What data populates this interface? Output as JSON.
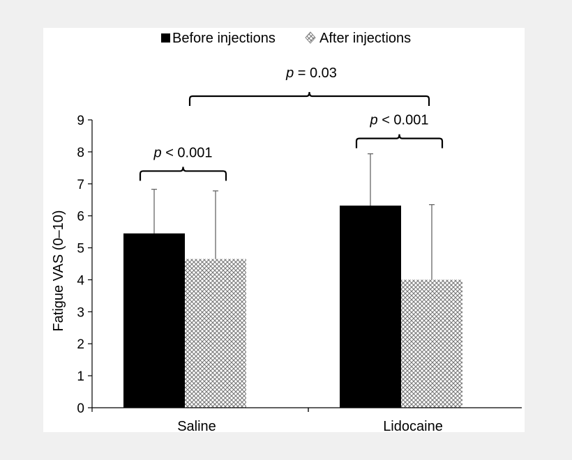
{
  "chart_data": {
    "type": "bar",
    "categories": [
      "Saline",
      "Lidocaine"
    ],
    "series": [
      {
        "name": "Before injections",
        "values": [
          5.45,
          6.32
        ],
        "errors": [
          1.38,
          1.62
        ],
        "fill": "solid",
        "color": "#000000"
      },
      {
        "name": "After injections",
        "values": [
          4.65,
          4.0
        ],
        "errors": [
          2.13,
          2.35
        ],
        "fill": "crosshatch",
        "color": "#888888"
      }
    ],
    "ylabel": "Fatigue VAS (0–10)",
    "xlabel": "",
    "ylim": [
      0,
      9
    ],
    "yticks": [
      0,
      1,
      2,
      3,
      4,
      5,
      6,
      7,
      8,
      9
    ],
    "legend_position": "top-center",
    "grid": false,
    "annotations": [
      {
        "id": "saline",
        "label": "p",
        "relation": "< 0.001",
        "spans": [
          "Saline: Before injections",
          "Saline: After injections"
        ]
      },
      {
        "id": "lidocaine",
        "label": "p",
        "relation": "< 0.001",
        "spans": [
          "Lidocaine: Before injections",
          "Lidocaine: After injections"
        ]
      },
      {
        "id": "between",
        "label": "p",
        "relation": "= 0.03",
        "spans": [
          "Saline",
          "Lidocaine"
        ]
      }
    ]
  }
}
